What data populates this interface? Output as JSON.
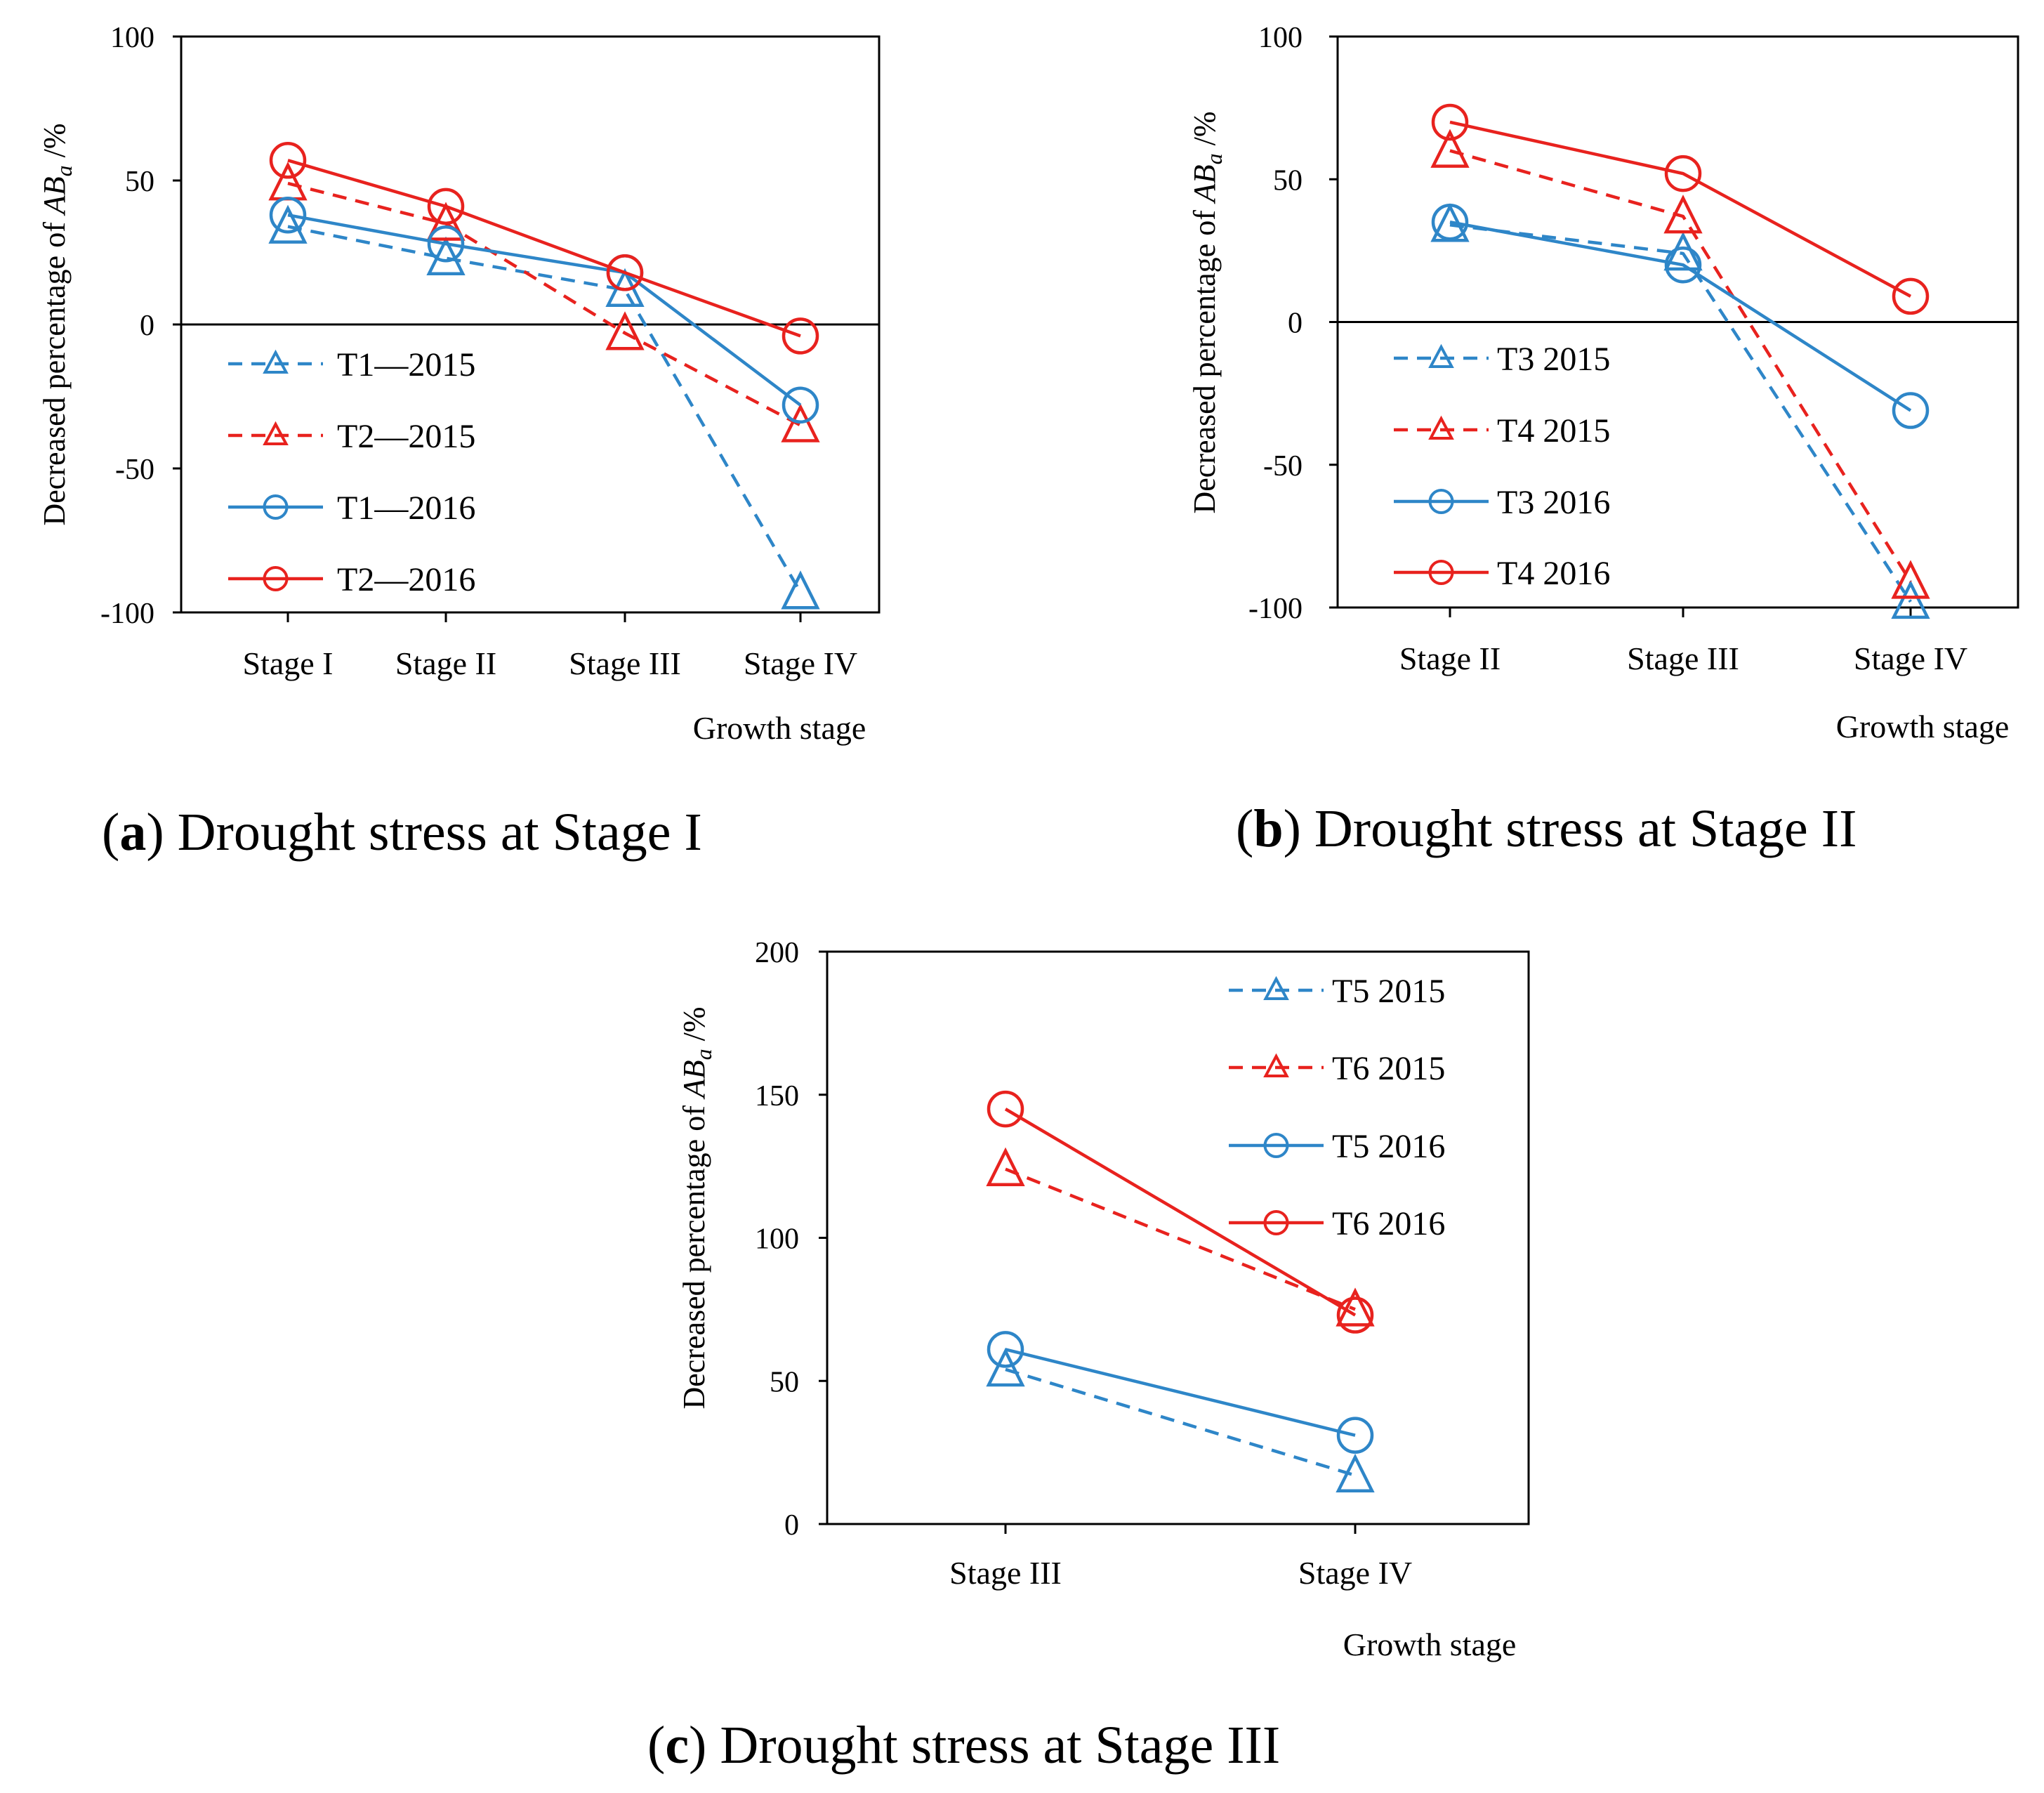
{
  "colors": {
    "blue": "#2E86C8",
    "red": "#E8221E",
    "axis": "#000000"
  },
  "chart_data": [
    {
      "type": "line",
      "caption": {
        "open": "(",
        "letter": "a",
        "rest": ") Drought stress at Stage I"
      },
      "categories": [
        "Stage I",
        "Stage II",
        "Stage III",
        "Stage IV"
      ],
      "xlabel": "Growth stage",
      "ylabel": {
        "main": "Decreased percentage of ",
        "italic": "AB",
        "sub": "a",
        "unit": " /%"
      },
      "ylim": [
        -100,
        100
      ],
      "yticks": [
        -100,
        -50,
        0,
        50,
        100
      ],
      "zero_line": true,
      "series": [
        {
          "name": "T1—2015",
          "color": "blue",
          "dash": true,
          "marker": "triangle",
          "values": [
            34,
            23,
            12,
            -93
          ]
        },
        {
          "name": "T2—2015",
          "color": "red",
          "dash": true,
          "marker": "triangle",
          "values": [
            49,
            35,
            -3,
            -35
          ]
        },
        {
          "name": "T1—2016",
          "color": "blue",
          "dash": false,
          "marker": "circle",
          "values": [
            38,
            28,
            18,
            -28
          ]
        },
        {
          "name": "T2—2016",
          "color": "red",
          "dash": false,
          "marker": "circle",
          "values": [
            57,
            41,
            18,
            -4
          ]
        }
      ]
    },
    {
      "type": "line",
      "caption": {
        "open": "(",
        "letter": "b",
        "rest": ") Drought stress at Stage II"
      },
      "categories": [
        "Stage II",
        "Stage III",
        "Stage IV"
      ],
      "xlabel": "Growth stage",
      "ylabel": {
        "main": "Decreased percentage of ",
        "italic": "AB",
        "sub": "a",
        "unit": " /%"
      },
      "ylim": [
        -100,
        100
      ],
      "yticks": [
        -100,
        -50,
        0,
        50,
        100
      ],
      "zero_line": true,
      "series": [
        {
          "name": "T3 2015",
          "color": "blue",
          "dash": true,
          "marker": "triangle",
          "values": [
            34,
            24,
            -98
          ]
        },
        {
          "name": "T4 2015",
          "color": "red",
          "dash": true,
          "marker": "triangle",
          "values": [
            60,
            37,
            -91
          ]
        },
        {
          "name": "T3 2016",
          "color": "blue",
          "dash": false,
          "marker": "circle",
          "values": [
            35,
            20,
            -31
          ]
        },
        {
          "name": "T4 2016",
          "color": "red",
          "dash": false,
          "marker": "circle",
          "values": [
            70,
            52,
            9
          ]
        }
      ]
    },
    {
      "type": "line",
      "caption": {
        "open": "(",
        "letter": "c",
        "rest": ") Drought stress at Stage III"
      },
      "categories": [
        "Stage III",
        "Stage IV"
      ],
      "xlabel": "Growth stage",
      "ylabel": {
        "main": "Decreased percentage of ",
        "italic": "AB",
        "sub": "a",
        "unit": " /%"
      },
      "ylim": [
        0,
        200
      ],
      "yticks": [
        0,
        50,
        100,
        150,
        200
      ],
      "zero_line": false,
      "series": [
        {
          "name": "T5 2015",
          "color": "blue",
          "dash": true,
          "marker": "triangle",
          "values": [
            54,
            17
          ]
        },
        {
          "name": "T6 2015",
          "color": "red",
          "dash": true,
          "marker": "triangle",
          "values": [
            124,
            75
          ]
        },
        {
          "name": "T5 2016",
          "color": "blue",
          "dash": false,
          "marker": "circle",
          "values": [
            61,
            31
          ]
        },
        {
          "name": "T6 2016",
          "color": "red",
          "dash": false,
          "marker": "circle",
          "values": [
            145,
            73
          ]
        }
      ]
    }
  ]
}
